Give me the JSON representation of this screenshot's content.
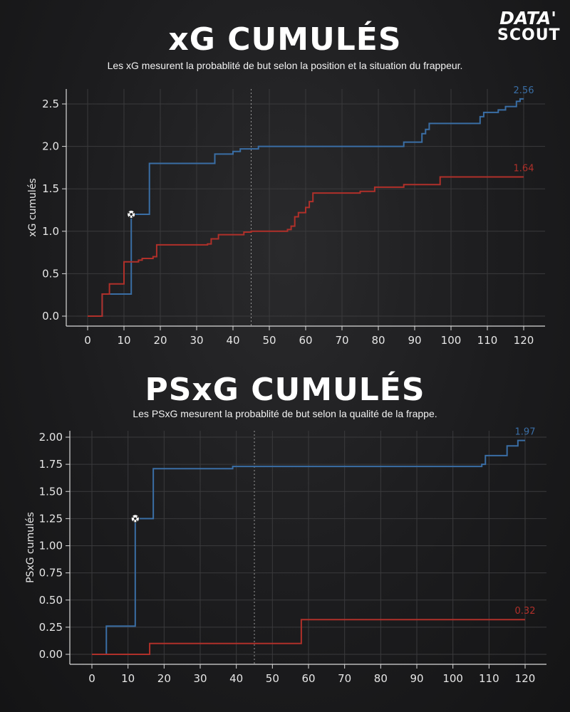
{
  "logo": {
    "line1": "DATA'",
    "line2": "SCOUT"
  },
  "colors": {
    "blue": "#3a6ea5",
    "red": "#b0302a",
    "axis": "#d9d9d9",
    "grid": "#3a3a3c"
  },
  "charts": [
    {
      "title": "xG CUMULÉS",
      "subtitle": "Les xG mesurent la probablité de but selon la position et la situation du frappeur."
    },
    {
      "title": "PSxG CUMULÉS",
      "subtitle": "Les PSxG mesurent la probablité de but selon la qualité de la frappe."
    }
  ],
  "chart_data": [
    {
      "type": "line",
      "title": "xG CUMULÉS",
      "xlabel": "",
      "ylabel": "xG cumulés",
      "xlim": [
        0,
        120
      ],
      "ylim": [
        0,
        2.6
      ],
      "xticks": [
        0,
        10,
        20,
        30,
        40,
        50,
        60,
        70,
        80,
        90,
        100,
        110,
        120
      ],
      "yticks": [
        0.0,
        0.5,
        1.0,
        1.5,
        2.0,
        2.5
      ],
      "ytick_labels": [
        "0.0",
        "0.5",
        "1.0",
        "1.5",
        "2.0",
        "2.5"
      ],
      "halftime_line_x": 45,
      "grid": true,
      "goal_marker": {
        "x": 12,
        "y": 1.2,
        "series": 0
      },
      "series": [
        {
          "color": "#3a6ea5",
          "end_label": "2.56",
          "steps": [
            [
              0,
              0
            ],
            [
              4,
              0.26
            ],
            [
              12,
              1.2
            ],
            [
              17,
              1.8
            ],
            [
              35,
              1.91
            ],
            [
              40,
              1.94
            ],
            [
              42,
              1.97
            ],
            [
              47,
              2.0
            ],
            [
              87,
              2.05
            ],
            [
              92,
              2.15
            ],
            [
              93,
              2.2
            ],
            [
              94,
              2.27
            ],
            [
              108,
              2.35
            ],
            [
              109,
              2.4
            ],
            [
              113,
              2.43
            ],
            [
              115,
              2.47
            ],
            [
              118,
              2.53
            ],
            [
              119,
              2.56
            ],
            [
              120,
              2.56
            ]
          ]
        },
        {
          "color": "#b0302a",
          "end_label": "1.64",
          "steps": [
            [
              0,
              0
            ],
            [
              4,
              0.26
            ],
            [
              6,
              0.38
            ],
            [
              10,
              0.64
            ],
            [
              14,
              0.66
            ],
            [
              15,
              0.68
            ],
            [
              18,
              0.7
            ],
            [
              19,
              0.84
            ],
            [
              33,
              0.85
            ],
            [
              34,
              0.91
            ],
            [
              36,
              0.96
            ],
            [
              43,
              0.99
            ],
            [
              45,
              1.0
            ],
            [
              55,
              1.02
            ],
            [
              56,
              1.06
            ],
            [
              57,
              1.17
            ],
            [
              58,
              1.22
            ],
            [
              60,
              1.28
            ],
            [
              61,
              1.35
            ],
            [
              62,
              1.45
            ],
            [
              75,
              1.47
            ],
            [
              79,
              1.52
            ],
            [
              87,
              1.55
            ],
            [
              97,
              1.64
            ],
            [
              120,
              1.64
            ]
          ]
        }
      ]
    },
    {
      "type": "line",
      "title": "PSxG CUMULÉS",
      "xlabel": "",
      "ylabel": "PSxG cumulés",
      "xlim": [
        0,
        120
      ],
      "ylim": [
        0,
        2.0
      ],
      "xticks": [
        0,
        10,
        20,
        30,
        40,
        50,
        60,
        70,
        80,
        90,
        100,
        110,
        120
      ],
      "yticks": [
        0.0,
        0.25,
        0.5,
        0.75,
        1.0,
        1.25,
        1.5,
        1.75,
        2.0
      ],
      "ytick_labels": [
        "0.00",
        "0.25",
        "0.50",
        "0.75",
        "1.00",
        "1.25",
        "1.50",
        "1.75",
        "2.00"
      ],
      "halftime_line_x": 45,
      "grid": true,
      "goal_marker": {
        "x": 12,
        "y": 1.25,
        "series": 0
      },
      "series": [
        {
          "color": "#3a6ea5",
          "end_label": "1.97",
          "steps": [
            [
              0,
              0
            ],
            [
              4,
              0.26
            ],
            [
              12,
              1.25
            ],
            [
              17,
              1.71
            ],
            [
              39,
              1.73
            ],
            [
              108,
              1.75
            ],
            [
              109,
              1.83
            ],
            [
              115,
              1.92
            ],
            [
              118,
              1.97
            ],
            [
              120,
              1.97
            ]
          ]
        },
        {
          "color": "#b0302a",
          "end_label": "0.32",
          "steps": [
            [
              0,
              0
            ],
            [
              16,
              0.1
            ],
            [
              58,
              0.32
            ],
            [
              120,
              0.32
            ]
          ]
        }
      ]
    }
  ]
}
